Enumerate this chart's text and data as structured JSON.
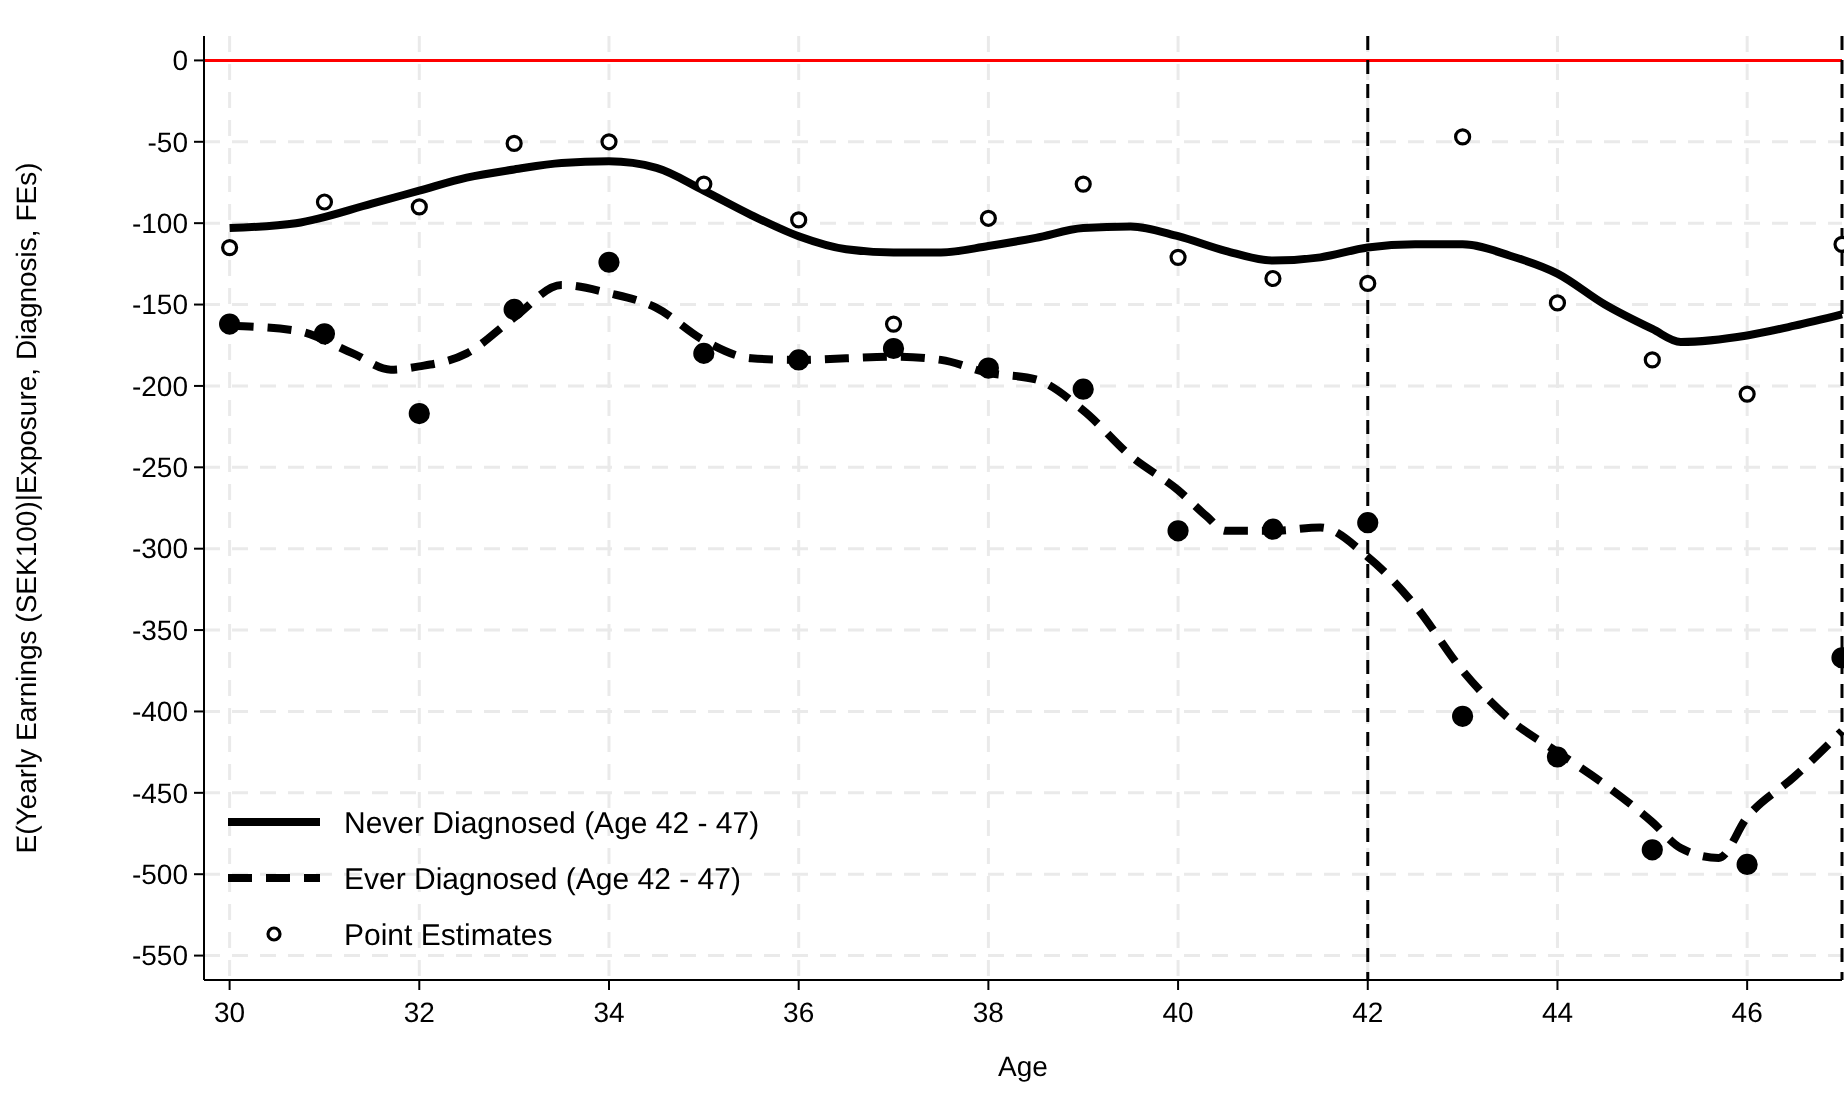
{
  "chart_data": {
    "type": "line",
    "xlabel": "Age",
    "ylabel": "E(Yearly Earnings (SEK100)|Exposure, Diagnosis, FEs)",
    "xlim": [
      29.73,
      47
    ],
    "xticks": [
      30,
      32,
      34,
      36,
      38,
      40,
      42,
      44,
      46
    ],
    "ylim": [
      -565,
      15
    ],
    "yticks": [
      0,
      -50,
      -100,
      -150,
      -200,
      -250,
      -300,
      -350,
      -400,
      -450,
      -500,
      -550
    ],
    "grid": true,
    "legend": "bottom left",
    "ref_lines": [
      {
        "axis": "y",
        "value": 0,
        "color": "#ff0000",
        "line_style": "solid"
      },
      {
        "axis": "x",
        "value": 42,
        "color": "#000000",
        "line_style": "dashed"
      },
      {
        "axis": "x",
        "value": 47,
        "color": "#000000",
        "line_style": "dashed"
      }
    ],
    "series": [
      {
        "name": "Never Diagnosed (Age 42 - 47)",
        "type": "line",
        "line_style": "solid",
        "color": "#000000",
        "x": [
          30,
          30.7,
          31.5,
          32,
          32.5,
          33,
          33.5,
          34,
          34.5,
          35,
          35.5,
          36,
          36.5,
          37,
          37.5,
          38,
          38.5,
          39,
          39.5,
          40,
          40.5,
          41,
          41.5,
          42,
          42.5,
          43,
          43.5,
          44,
          44.5,
          45,
          45.3,
          46,
          46.5,
          47
        ],
        "values": [
          -103,
          -100,
          -88,
          -80,
          -72,
          -67,
          -63,
          -62,
          -66,
          -80,
          -95,
          -108,
          -116,
          -118,
          -118,
          -114,
          -109,
          -103,
          -102,
          -108,
          -117,
          -123,
          -121,
          -115,
          -113,
          -113,
          -120,
          -131,
          -150,
          -165,
          -173,
          -169,
          -163,
          -156
        ]
      },
      {
        "name": "Ever Diagnosed (Age 42 - 47)",
        "type": "line",
        "line_style": "dashed",
        "color": "#000000",
        "x": [
          30,
          30.7,
          31.3,
          31.7,
          32,
          32.5,
          33,
          33.5,
          34,
          34.5,
          35,
          35.5,
          36,
          36.5,
          37,
          37.5,
          38,
          38.5,
          39,
          39.5,
          40,
          40.3,
          40.5,
          41,
          41.5,
          42,
          42.5,
          43,
          43.5,
          44,
          44.5,
          45,
          45.3,
          45.7,
          46,
          46.5,
          47
        ],
        "values": [
          -163,
          -166,
          -180,
          -190,
          -188,
          -180,
          -158,
          -138,
          -143,
          -152,
          -172,
          -183,
          -184,
          -183,
          -182,
          -184,
          -192,
          -196,
          -215,
          -243,
          -264,
          -280,
          -289,
          -289,
          -287,
          -305,
          -335,
          -375,
          -405,
          -425,
          -445,
          -468,
          -484,
          -490,
          -465,
          -440,
          -412
        ]
      },
      {
        "name": "Point Estimates",
        "type": "scatter",
        "marker": "circle",
        "color": "#000000",
        "x": [
          30,
          31,
          32,
          33,
          34,
          35,
          36,
          37,
          38,
          39,
          40,
          41,
          42,
          43,
          44,
          45,
          46,
          47
        ],
        "values": [
          -115,
          -87,
          -90,
          -51,
          -50,
          -76,
          -98,
          -162,
          -97,
          -76,
          -121,
          -134,
          -137,
          -47,
          -149,
          -184,
          -205,
          -113
        ]
      },
      {
        "type": "scatter",
        "marker": "circle",
        "color": "#000000",
        "x": [
          30,
          31,
          32,
          33,
          34,
          35,
          36,
          37,
          38,
          39,
          40,
          41,
          42,
          43,
          44,
          45,
          46,
          47
        ],
        "values": [
          -162,
          -168,
          -217,
          -153,
          -124,
          -180,
          -184,
          -177,
          -189,
          -202,
          -289,
          -288,
          -284,
          -403,
          -428,
          -485,
          -494,
          -367
        ]
      }
    ]
  }
}
